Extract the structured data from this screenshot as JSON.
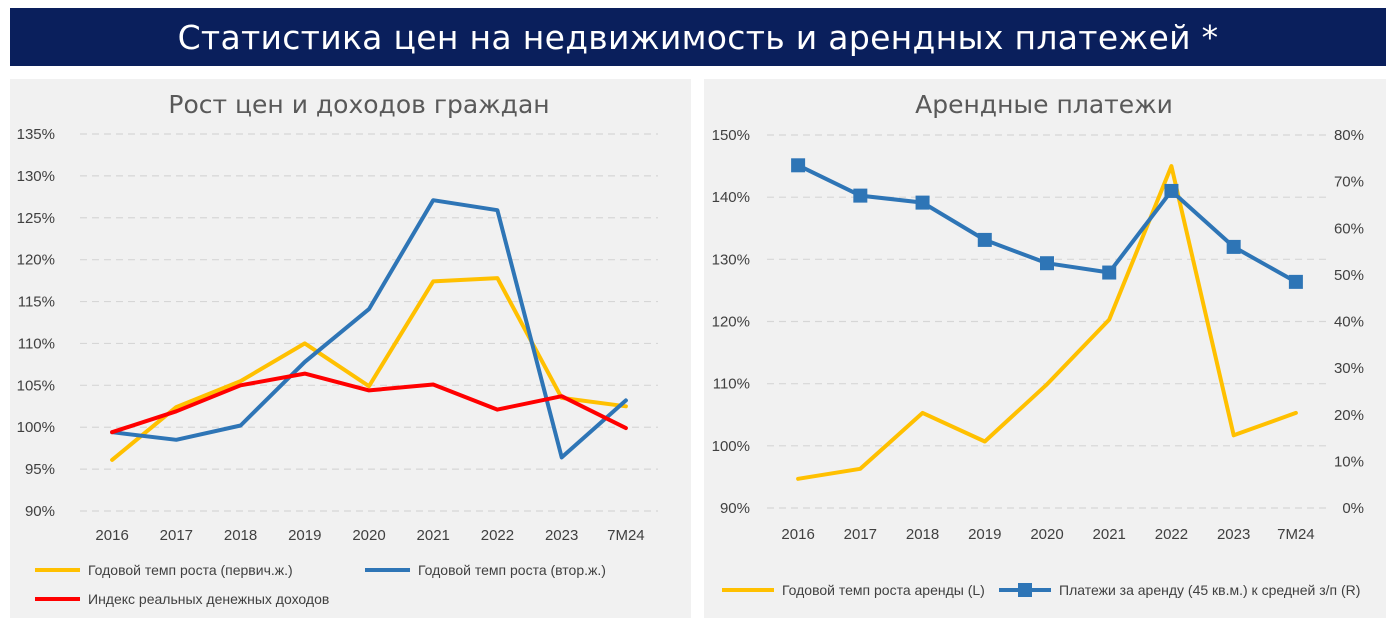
{
  "banner": {
    "title": "Статистика цен на недвижимость и арендных платежей *"
  },
  "colors": {
    "banner_bg": "#0a1f5c",
    "yellow": "#ffc000",
    "blue": "#2e75b6",
    "red": "#ff0000",
    "panel_bg": "#f1f1f1"
  },
  "chart_data": [
    {
      "type": "line",
      "title": "Рост цен и доходов граждан",
      "categories": [
        "2016",
        "2017",
        "2018",
        "2019",
        "2020",
        "2021",
        "2022",
        "2023",
        "7M24"
      ],
      "y_ticks": [
        "90%",
        "95%",
        "100%",
        "105%",
        "110%",
        "115%",
        "120%",
        "125%",
        "130%",
        "135%"
      ],
      "ylim": [
        90,
        135
      ],
      "grid": true,
      "legend_position": "bottom",
      "series": [
        {
          "name": "Годовой темп роста (первич.ж.)",
          "color": "#ffc000",
          "values": [
            96.1,
            102.4,
            105.5,
            110.0,
            104.9,
            117.4,
            117.8,
            103.5,
            102.5
          ]
        },
        {
          "name": "Годовой темп роста (втор.ж.)",
          "color": "#2e75b6",
          "values": [
            99.4,
            98.5,
            100.2,
            107.8,
            114.1,
            127.1,
            125.9,
            96.4,
            103.2
          ]
        },
        {
          "name": "Индекс реальных денежных доходов",
          "color": "#ff0000",
          "values": [
            99.4,
            101.9,
            105.0,
            106.4,
            104.4,
            105.1,
            102.1,
            103.7,
            99.9
          ]
        }
      ]
    },
    {
      "type": "line",
      "title": "Арендные платежи",
      "categories": [
        "2016",
        "2017",
        "2018",
        "2019",
        "2020",
        "2021",
        "2022",
        "2023",
        "7M24"
      ],
      "y_ticks_left": [
        "90%",
        "100%",
        "110%",
        "120%",
        "130%",
        "140%",
        "150%"
      ],
      "ylim_left": [
        90,
        150
      ],
      "y_ticks_right": [
        "0%",
        "10%",
        "20%",
        "30%",
        "40%",
        "50%",
        "60%",
        "70%",
        "80%"
      ],
      "ylim_right": [
        0,
        80
      ],
      "grid": true,
      "legend_position": "bottom",
      "series": [
        {
          "name": "Годовой темп роста аренды (L)",
          "axis": "left",
          "color": "#ffc000",
          "values": [
            94.7,
            96.3,
            105.3,
            100.7,
            109.9,
            120.3,
            145.0,
            101.7,
            105.3
          ]
        },
        {
          "name": "Платежи за аренду (45 кв.м.) к средней з/п (R)",
          "axis": "right",
          "color": "#2e75b6",
          "marker": "square",
          "values": [
            73.5,
            67.0,
            65.5,
            57.5,
            52.5,
            50.5,
            68.0,
            56.0,
            48.5
          ]
        }
      ]
    }
  ]
}
